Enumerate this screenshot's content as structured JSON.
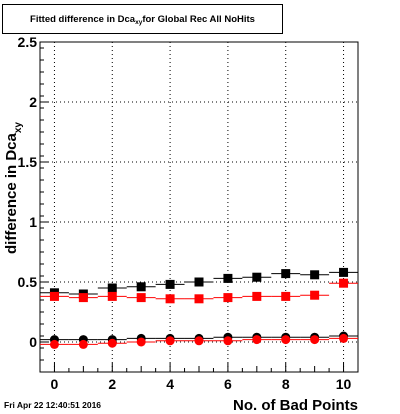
{
  "title": {
    "main": "Fitted difference in Dca",
    "sub": "xy",
    "rest": " for Global Rec All NoHits"
  },
  "timestamp": "Fri Apr 22 12:40:51 2016",
  "colors": {
    "black": "#000000",
    "red": "#ff0000"
  },
  "chart_data": {
    "type": "scatter",
    "xlabel": "No. of Bad Points",
    "ylabel": "difference in Dca",
    "ylabel_sub": "xy",
    "xlim": [
      -0.5,
      10.5
    ],
    "ylim": [
      -0.25,
      2.5
    ],
    "x_ticks": [
      0,
      2,
      4,
      6,
      8,
      10
    ],
    "y_ticks": [
      0,
      0.5,
      1,
      1.5,
      2,
      2.5
    ],
    "y_tick_labels": [
      "0",
      "0.5",
      "1",
      "1.5",
      "2",
      "2.5"
    ],
    "grid": true,
    "series": [
      {
        "marker": "square",
        "color": "#000000",
        "x": [
          0,
          1,
          2,
          3,
          4,
          5,
          6,
          7,
          8,
          9,
          10
        ],
        "y": [
          0.41,
          0.4,
          0.45,
          0.46,
          0.48,
          0.5,
          0.53,
          0.54,
          0.57,
          0.56,
          0.58
        ]
      },
      {
        "marker": "square",
        "color": "#ff0000",
        "x": [
          0,
          1,
          2,
          3,
          4,
          5,
          6,
          7,
          8,
          9,
          10
        ],
        "y": [
          0.38,
          0.37,
          0.38,
          0.37,
          0.36,
          0.36,
          0.37,
          0.38,
          0.38,
          0.39,
          0.49
        ]
      },
      {
        "marker": "circle",
        "color": "#000000",
        "x": [
          0,
          1,
          2,
          3,
          4,
          5,
          6,
          7,
          8,
          9,
          10
        ],
        "y": [
          0.02,
          0.02,
          0.02,
          0.03,
          0.03,
          0.03,
          0.04,
          0.04,
          0.04,
          0.04,
          0.05
        ]
      },
      {
        "marker": "circle",
        "color": "#ff0000",
        "x": [
          0,
          1,
          2,
          3,
          4,
          5,
          6,
          7,
          8,
          9,
          10
        ],
        "y": [
          -0.02,
          -0.02,
          -0.01,
          0.0,
          0.01,
          0.01,
          0.01,
          0.02,
          0.02,
          0.02,
          0.03
        ]
      }
    ]
  }
}
